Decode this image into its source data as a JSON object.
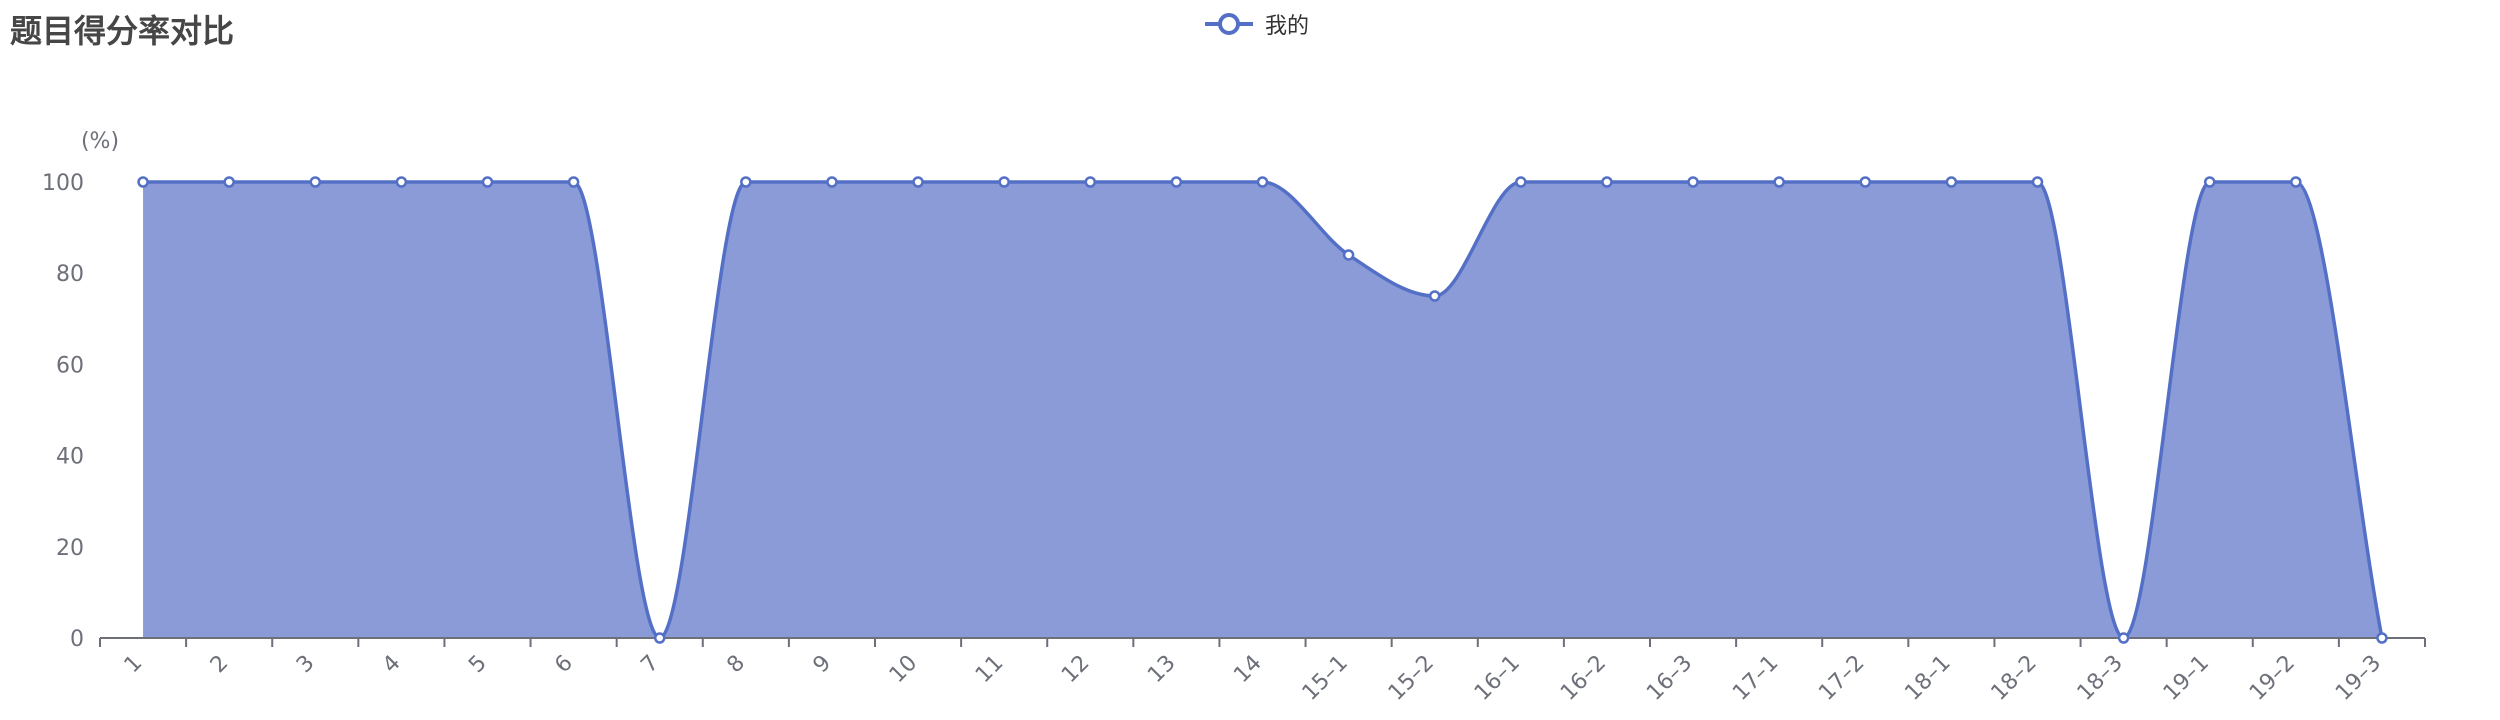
{
  "title": "题目得分率对比",
  "legend": {
    "series_name": "我的",
    "icon": "line-circle-marker-icon"
  },
  "colors": {
    "line": "#5470c6",
    "area": "#8a9bd8",
    "axis": "#6e7079",
    "marker_fill": "#ffffff",
    "title": "#464646"
  },
  "chart_data": {
    "type": "area",
    "title": "题目得分率对比",
    "ylabel": "(%)",
    "xlabel": "",
    "ylim": [
      0,
      100
    ],
    "yticks": [
      0,
      20,
      40,
      60,
      80,
      100
    ],
    "grid": false,
    "legend_position": "top-center",
    "categories": [
      "1",
      "2",
      "3",
      "4",
      "5",
      "6",
      "7",
      "8",
      "9",
      "10",
      "11",
      "12",
      "13",
      "14",
      "15–1",
      "15–2",
      "16–1",
      "16–2",
      "16–3",
      "17–1",
      "17–2",
      "18–1",
      "18–2",
      "18–3",
      "19–1",
      "19–2",
      "19–3"
    ],
    "series": [
      {
        "name": "我的",
        "smooth": true,
        "values": [
          100,
          100,
          100,
          100,
          100,
          100,
          0,
          100,
          100,
          100,
          100,
          100,
          100,
          100,
          84,
          75,
          100,
          100,
          100,
          100,
          100,
          100,
          100,
          0,
          100,
          100,
          0
        ]
      }
    ]
  }
}
